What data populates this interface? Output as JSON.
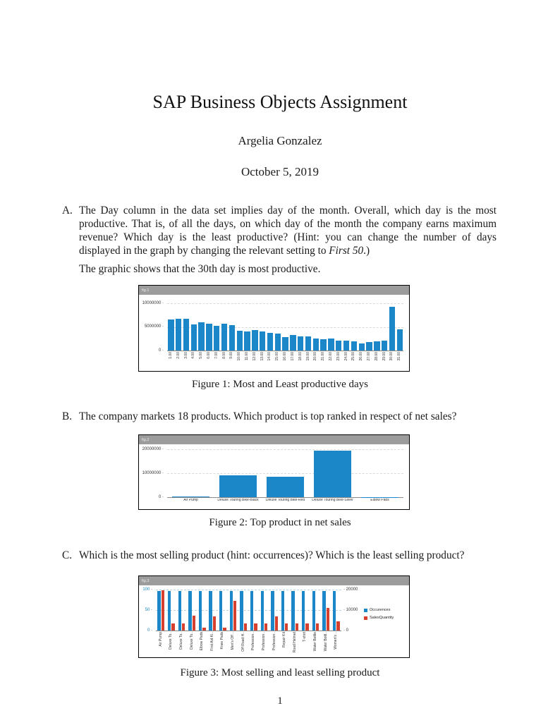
{
  "doc": {
    "title": "SAP Business Objects Assignment",
    "author": "Argelia Gonzalez",
    "date": "October 5, 2019",
    "page_number": "1"
  },
  "items": {
    "a": {
      "label": "A.",
      "text_before": "The Day column in the data set implies day of the month.  Overall, which day is the most productive.  That is, of all the days, on which day of the month the company earns maximum revenue? Which day is the least productive? (Hint: you can change the number of days displayed in the graph by changing the relevant setting to ",
      "text_italic": "First 50",
      "text_after": ".)",
      "paragraph2": "The graphic shows that the 30th day is most productive."
    },
    "b": {
      "label": "B.",
      "text": "The company markets 18 products. Which product is top ranked in respect of net sales?"
    },
    "c": {
      "label": "C.",
      "text": "Which is the most selling product (hint: occurrences)? Which is the least selling product?"
    }
  },
  "figures": [
    {
      "caption": "Figure 1: Most and Least productive days"
    },
    {
      "caption": "Figure 2: Top product in net sales"
    },
    {
      "caption": "Figure 3: Most selling and least selling product"
    }
  ],
  "chart_data": [
    {
      "type": "bar",
      "header_label": "fig.1",
      "header_color": "#9c9c9c",
      "categories": [
        "1.00",
        "2.00",
        "3.00",
        "4.00",
        "5.00",
        "6.00",
        "7.00",
        "8.00",
        "9.00",
        "10.00",
        "11.00",
        "12.00",
        "13.00",
        "14.00",
        "15.00",
        "16.00",
        "17.00",
        "18.00",
        "19.00",
        "20.00",
        "21.00",
        "22.00",
        "23.00",
        "24.00",
        "25.00",
        "26.00",
        "27.00",
        "28.00",
        "29.00",
        "30.00",
        "31.00"
      ],
      "series": [
        {
          "color": "#1b87c8",
          "values": [
            6500000,
            6750000,
            6750000,
            5500000,
            5900000,
            5650000,
            5300000,
            5650000,
            5350000,
            4250000,
            4000000,
            4400000,
            4050000,
            3700000,
            3600000,
            2900000,
            3300000,
            3050000,
            2950000,
            2600000,
            2350000,
            2500000,
            2050000,
            2050000,
            1950000,
            1550000,
            1750000,
            1900000,
            2150000,
            9200000,
            4500000
          ]
        }
      ],
      "ylim": [
        0,
        10000000
      ],
      "yticks": [
        0,
        5000000,
        10000000
      ],
      "ytick_labels": [
        "0",
        "5000000",
        "10000000"
      ],
      "grid": "dashed"
    },
    {
      "type": "bar",
      "header_label": "fig.2",
      "header_color": "#9c9c9c",
      "categories": [
        "Air Pump",
        "Deluxe Touring Bike-Black",
        "Deluxe Touring Bike-Red",
        "Deluxe Touring Bike-Silver",
        "Elbow Pads"
      ],
      "series": [
        {
          "color": "#1b87c8",
          "values": [
            300000,
            9000000,
            8600000,
            19500000,
            120000
          ]
        }
      ],
      "ylim": [
        0,
        20000000
      ],
      "yticks": [
        0,
        10000000,
        20000000
      ],
      "ytick_labels": [
        "0",
        "10000000",
        "20000000"
      ],
      "grid": "dashed"
    },
    {
      "type": "bar",
      "header_label": "fig.3",
      "header_color": "#9c9c9c",
      "categories": [
        "Air Pump",
        "Deluxe To..",
        "Deluxe To..",
        "Deluxe To..",
        "Elbow Pads",
        "First Aid Ki..",
        "Knee Pads",
        "Men's Off ..",
        "Off Road H..",
        "Profession..",
        "Profession..",
        "Profession..",
        "Repair Kit",
        "Road Helmet",
        "T-shirt",
        "Water Bottle",
        "Water Bottl..",
        "Women's .."
      ],
      "series": [
        {
          "name": "Occurences",
          "axis": "left",
          "color": "#1b87c8",
          "values": [
            97,
            97,
            97,
            97,
            97,
            97,
            97,
            97,
            97,
            97,
            97,
            97,
            97,
            97,
            97,
            97,
            97,
            97
          ]
        },
        {
          "name": "SalesQuantity",
          "axis": "right",
          "color": "#d6402f",
          "values": [
            19500,
            3400,
            3400,
            7400,
            1300,
            7000,
            1400,
            14500,
            3400,
            3500,
            3500,
            7000,
            3400,
            3400,
            3400,
            3400,
            11000,
            4600
          ]
        }
      ],
      "left_axis": {
        "lim": [
          0,
          100
        ],
        "ticks": [
          0,
          50,
          100
        ],
        "labels": [
          "0",
          "50",
          "100"
        ],
        "color": "#1b87c8"
      },
      "right_axis": {
        "lim": [
          0,
          20000
        ],
        "ticks": [
          0,
          10000,
          20000
        ],
        "labels": [
          "0",
          "10000",
          "20000"
        ],
        "color": "#333333"
      },
      "legend": [
        "Occurences",
        "SalesQuantity"
      ],
      "grid": "dashed"
    }
  ]
}
